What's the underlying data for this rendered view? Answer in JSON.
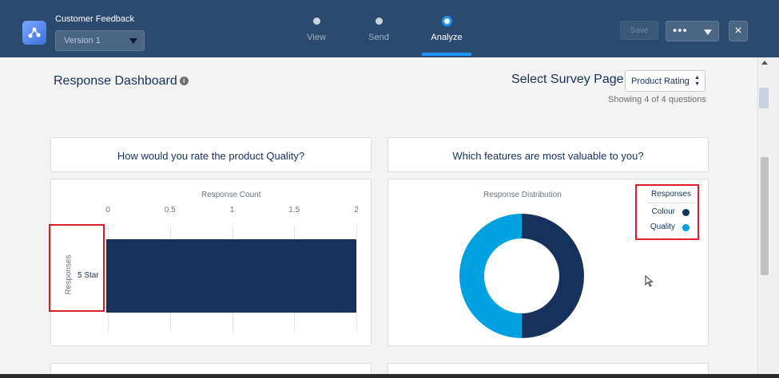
{
  "header": {
    "app_title": "Customer Feedback",
    "version_value": "Version 1",
    "steps": [
      {
        "label": "View",
        "active": false
      },
      {
        "label": "Send",
        "active": false
      },
      {
        "label": "Analyze",
        "active": true
      }
    ],
    "save_label": "Save",
    "more_label": "•••",
    "close_label": "×"
  },
  "toolbar": {
    "dashboard_title": "Response Dashboard",
    "info_icon": "i",
    "survey_page_label": "Select Survey Page",
    "survey_page_value": "Product Rating",
    "showing_text": "Showing 4 of 4 questions"
  },
  "cards": {
    "q1_title": "How would you rate the product Quality?",
    "q2_title": "Which features are most valuable to you?"
  },
  "chart_data": [
    {
      "type": "bar",
      "orientation": "horizontal",
      "title": "Response Count",
      "ylabel": "Responses",
      "categories": [
        "5 Star"
      ],
      "values": [
        2
      ],
      "xlim": [
        0,
        2
      ],
      "ticks": [
        "0",
        "0.5",
        "1",
        "1.5",
        "2"
      ],
      "bar_color": "#16325c",
      "grid": true
    },
    {
      "type": "pie",
      "variant": "donut",
      "title": "Response Distribution",
      "legend_title": "Responses",
      "legend_placement": "top-right",
      "labels": [
        "Colour",
        "Quality"
      ],
      "values": [
        1,
        1
      ],
      "colors": [
        "#16325c",
        "#00a1e0"
      ]
    }
  ],
  "colors": {
    "header_bg": "#2b4a6f",
    "accent": "#1b96ff",
    "highlight_box": "#e01e2b"
  }
}
